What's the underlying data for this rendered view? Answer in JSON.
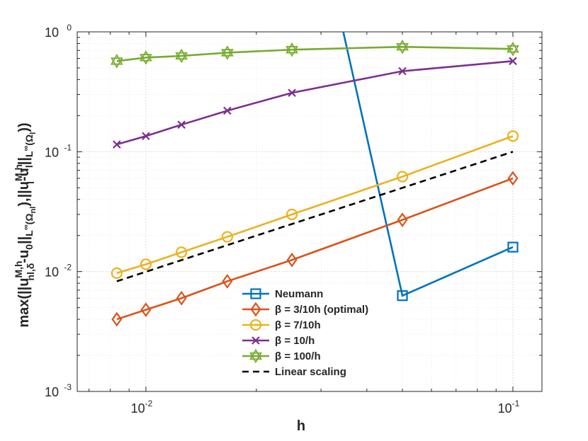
{
  "chart_data": {
    "type": "line",
    "title": "",
    "xlabel": "h",
    "ylabel_parts": {
      "prefix": "max(||u",
      "sup1": "M,h",
      "sub1": "nl,δ",
      "mid1": "-u",
      "sub2": "0",
      "mid2": "||",
      "sub3": "L",
      "sup3": "∞",
      "sub4": "(Ω",
      "sub5": "nl",
      "mid3": "),||u",
      "sup6": "M,h",
      "sub6": "l",
      "mid4": "-u",
      "sub7": "l",
      "mid5": "||",
      "sub8": "L",
      "sup8": "∞",
      "sub9": "(Ω",
      "sub10": "l",
      "suffix": "))"
    },
    "xscale": "log",
    "yscale": "log",
    "xlim": [
      0.0065,
      0.12
    ],
    "ylim": [
      0.001,
      1
    ],
    "xticks": [
      {
        "value": 0.01,
        "base": "10",
        "exp": "-2"
      },
      {
        "value": 0.1,
        "base": "10",
        "exp": "-1"
      }
    ],
    "yticks": [
      {
        "value": 0.001,
        "base": "10",
        "exp": "-3"
      },
      {
        "value": 0.01,
        "base": "10",
        "exp": "-2"
      },
      {
        "value": 0.1,
        "base": "10",
        "exp": "-1"
      },
      {
        "value": 1,
        "base": "10",
        "exp": "0"
      }
    ],
    "grid": true,
    "legend_position": "bottom-center",
    "series": [
      {
        "name": "Neumann",
        "color": "#0072BD",
        "marker": "square",
        "dash": "solid",
        "x": [
          0.05,
          0.1
        ],
        "y": [
          0.0063,
          0.016
        ],
        "steep_segment": {
          "x": [
            0.0345,
            0.05
          ],
          "y": [
            1.0,
            0.0063
          ]
        }
      },
      {
        "name": "β = 3/10h (optimal)",
        "color": "#D95319",
        "marker": "diamond",
        "dash": "solid",
        "x": [
          0.008333,
          0.01,
          0.0125,
          0.016667,
          0.025,
          0.05,
          0.1
        ],
        "y": [
          0.004,
          0.0048,
          0.006,
          0.0083,
          0.0125,
          0.027,
          0.06
        ]
      },
      {
        "name": "β = 7/10h",
        "color": "#EDB120",
        "marker": "circle",
        "dash": "solid",
        "x": [
          0.008333,
          0.01,
          0.0125,
          0.016667,
          0.025,
          0.05,
          0.1
        ],
        "y": [
          0.0097,
          0.0115,
          0.0145,
          0.0195,
          0.03,
          0.062,
          0.135
        ]
      },
      {
        "name": "β = 10/h",
        "color": "#7E2F8E",
        "marker": "x",
        "dash": "solid",
        "x": [
          0.008333,
          0.01,
          0.0125,
          0.016667,
          0.025,
          0.05,
          0.1
        ],
        "y": [
          0.115,
          0.135,
          0.168,
          0.22,
          0.31,
          0.47,
          0.57
        ]
      },
      {
        "name": "β = 100/h",
        "color": "#77AC30",
        "marker": "hexagram",
        "dash": "solid",
        "x": [
          0.008333,
          0.01,
          0.0125,
          0.016667,
          0.025,
          0.05,
          0.1
        ],
        "y": [
          0.57,
          0.61,
          0.63,
          0.67,
          0.71,
          0.75,
          0.72
        ]
      },
      {
        "name": "Linear scaling",
        "color": "#000000",
        "marker": "none",
        "dash": "dashed",
        "x": [
          0.008333,
          0.1
        ],
        "y": [
          0.0083,
          0.1
        ]
      }
    ]
  }
}
